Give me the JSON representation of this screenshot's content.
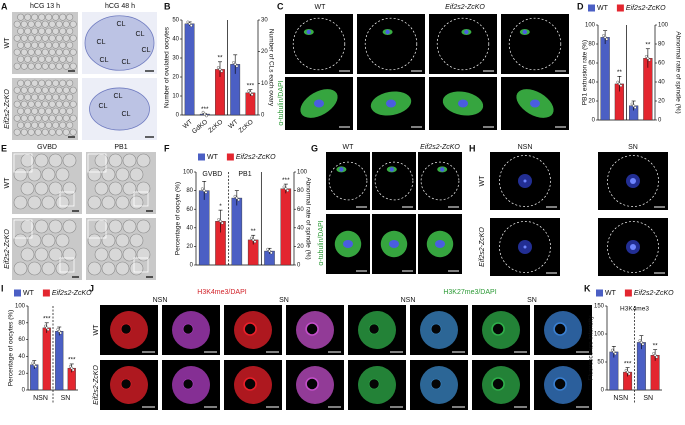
{
  "panels": {
    "A": {
      "letter": "A",
      "columns": [
        "hCG 13 h",
        "hCG 48 h"
      ],
      "rows": [
        "WT",
        "Eif2s2-ZcKO"
      ],
      "cl_labels_top": [
        "CL",
        "CL",
        "CL",
        "CL",
        "CL",
        "CL"
      ],
      "cl_labels_bottom": [
        "CL",
        "CL",
        "CL"
      ]
    },
    "C": {
      "letter": "C",
      "columns": [
        "WT",
        "Eif2s2-ZcKO"
      ],
      "stain": "α-tubulin/DAPI"
    },
    "E": {
      "letter": "E",
      "columns": [
        "GVBD",
        "PB1"
      ],
      "rows": [
        "WT",
        "Eif2s2-ZcKO"
      ]
    },
    "G": {
      "letter": "G",
      "columns": [
        "WT",
        "Eif2s2-ZcKO"
      ],
      "stain": "α-tubulin/DAPI"
    },
    "H": {
      "letter": "H",
      "columns": [
        "NSN",
        "SN"
      ],
      "rows": [
        "WT",
        "Eif2s2-ZcKO"
      ]
    },
    "J": {
      "letter": "J",
      "stains": [
        "H3K4me3/DAPI",
        "H3K27me3/DAPI"
      ],
      "columns": [
        "NSN",
        "SN",
        "NSN",
        "SN"
      ],
      "rows": [
        "WT",
        "Eif2s2-ZcKO"
      ]
    }
  },
  "chart_data": [
    {
      "type": "bar",
      "letter": "B",
      "ylabel": "Number of ovulated oocytes",
      "y2label": "Number of CLs each ovary",
      "categories": [
        "WT",
        "GdKO",
        "ZcKO",
        "WT",
        "ZcKO"
      ],
      "values": [
        48,
        0.5,
        24,
        16,
        7
      ],
      "errors": [
        1,
        0.3,
        4,
        3,
        1
      ],
      "colors": [
        "#4b5fc4",
        "#4b5fc4",
        "#e3262f",
        "#4b5fc4",
        "#e3262f"
      ],
      "axes": [
        "y",
        "y",
        "y",
        "y2",
        "y2"
      ],
      "significance": [
        null,
        "***",
        "**",
        null,
        "***"
      ],
      "ylim": [
        0,
        50
      ],
      "yticks": [
        0,
        10,
        20,
        30,
        40,
        50
      ],
      "y2lim": [
        0,
        30
      ],
      "y2ticks": [
        0,
        10,
        20,
        30
      ]
    },
    {
      "type": "bar",
      "letter": "D",
      "ylabel": "PB1 extrusion rate (%)",
      "y2label": "Abnormal rate of spindle (%)",
      "legend": [
        {
          "name": "WT",
          "color": "#4b5fc4"
        },
        {
          "name": "Eif2s2-ZcKO",
          "color": "#e3262f"
        }
      ],
      "values": [
        87,
        38,
        15,
        65
      ],
      "errors": [
        7,
        8,
        5,
        10
      ],
      "colors": [
        "#4b5fc4",
        "#e3262f",
        "#4b5fc4",
        "#e3262f"
      ],
      "axes": [
        "y",
        "y",
        "y2",
        "y2"
      ],
      "significance": [
        null,
        "**",
        null,
        "**"
      ],
      "ylim": [
        0,
        100
      ],
      "yticks": [
        0,
        20,
        40,
        60,
        80,
        100
      ],
      "y2lim": [
        0,
        100
      ],
      "y2ticks": [
        0,
        20,
        40,
        60,
        80,
        100
      ]
    },
    {
      "type": "bar",
      "letter": "F",
      "ylabel": "Percentage of oocyte (%)",
      "y2label": "Abnormal rate of spindle (%)",
      "legend": [
        {
          "name": "WT",
          "color": "#4b5fc4"
        },
        {
          "name": "Eif2s2-ZcKO",
          "color": "#e3262f"
        }
      ],
      "groups": [
        "GVBD",
        "PB1",
        null
      ],
      "values": [
        80,
        47,
        72,
        27,
        15,
        82
      ],
      "errors": [
        10,
        12,
        8,
        5,
        3,
        5
      ],
      "colors": [
        "#4b5fc4",
        "#e3262f",
        "#4b5fc4",
        "#e3262f",
        "#4b5fc4",
        "#e3262f"
      ],
      "axes": [
        "y",
        "y",
        "y",
        "y",
        "y2",
        "y2"
      ],
      "significance": [
        null,
        "*",
        null,
        "**",
        null,
        "***"
      ],
      "ylim": [
        0,
        100
      ],
      "yticks": [
        0,
        20,
        40,
        60,
        80,
        100
      ],
      "y2lim": [
        0,
        100
      ],
      "y2ticks": [
        0,
        20,
        40,
        60,
        80,
        100
      ]
    },
    {
      "type": "bar",
      "letter": "I",
      "ylabel": "Percentage of oocytes (%)",
      "legend": [
        {
          "name": "WT",
          "color": "#4b5fc4"
        },
        {
          "name": "Eif2s2-ZcKO",
          "color": "#e3262f"
        }
      ],
      "groups": [
        "NSN",
        "SN"
      ],
      "values": [
        30,
        74,
        70,
        26
      ],
      "errors": [
        5,
        6,
        5,
        5
      ],
      "colors": [
        "#4b5fc4",
        "#e3262f",
        "#4b5fc4",
        "#e3262f"
      ],
      "axes": [
        "y",
        "y",
        "y",
        "y"
      ],
      "significance": [
        null,
        "***",
        null,
        "***"
      ],
      "ylim": [
        0,
        100
      ],
      "yticks": [
        0,
        20,
        40,
        60,
        80,
        100
      ]
    },
    {
      "type": "bar",
      "letter": "K",
      "title": "H3K4me3",
      "ylabel": "Fluorescence intensity",
      "legend": [
        {
          "name": "WT",
          "color": "#4b5fc4"
        },
        {
          "name": "Eif2s2-ZcKO",
          "color": "#e3262f"
        }
      ],
      "groups": [
        "NSN",
        "SN"
      ],
      "values": [
        68,
        32,
        85,
        62
      ],
      "errors": [
        10,
        8,
        12,
        10
      ],
      "colors": [
        "#4b5fc4",
        "#e3262f",
        "#4b5fc4",
        "#e3262f"
      ],
      "axes": [
        "y",
        "y",
        "y",
        "y"
      ],
      "significance": [
        null,
        "***",
        null,
        "**"
      ],
      "ylim": [
        0,
        150
      ],
      "yticks": [
        0,
        50,
        100,
        150
      ]
    }
  ]
}
